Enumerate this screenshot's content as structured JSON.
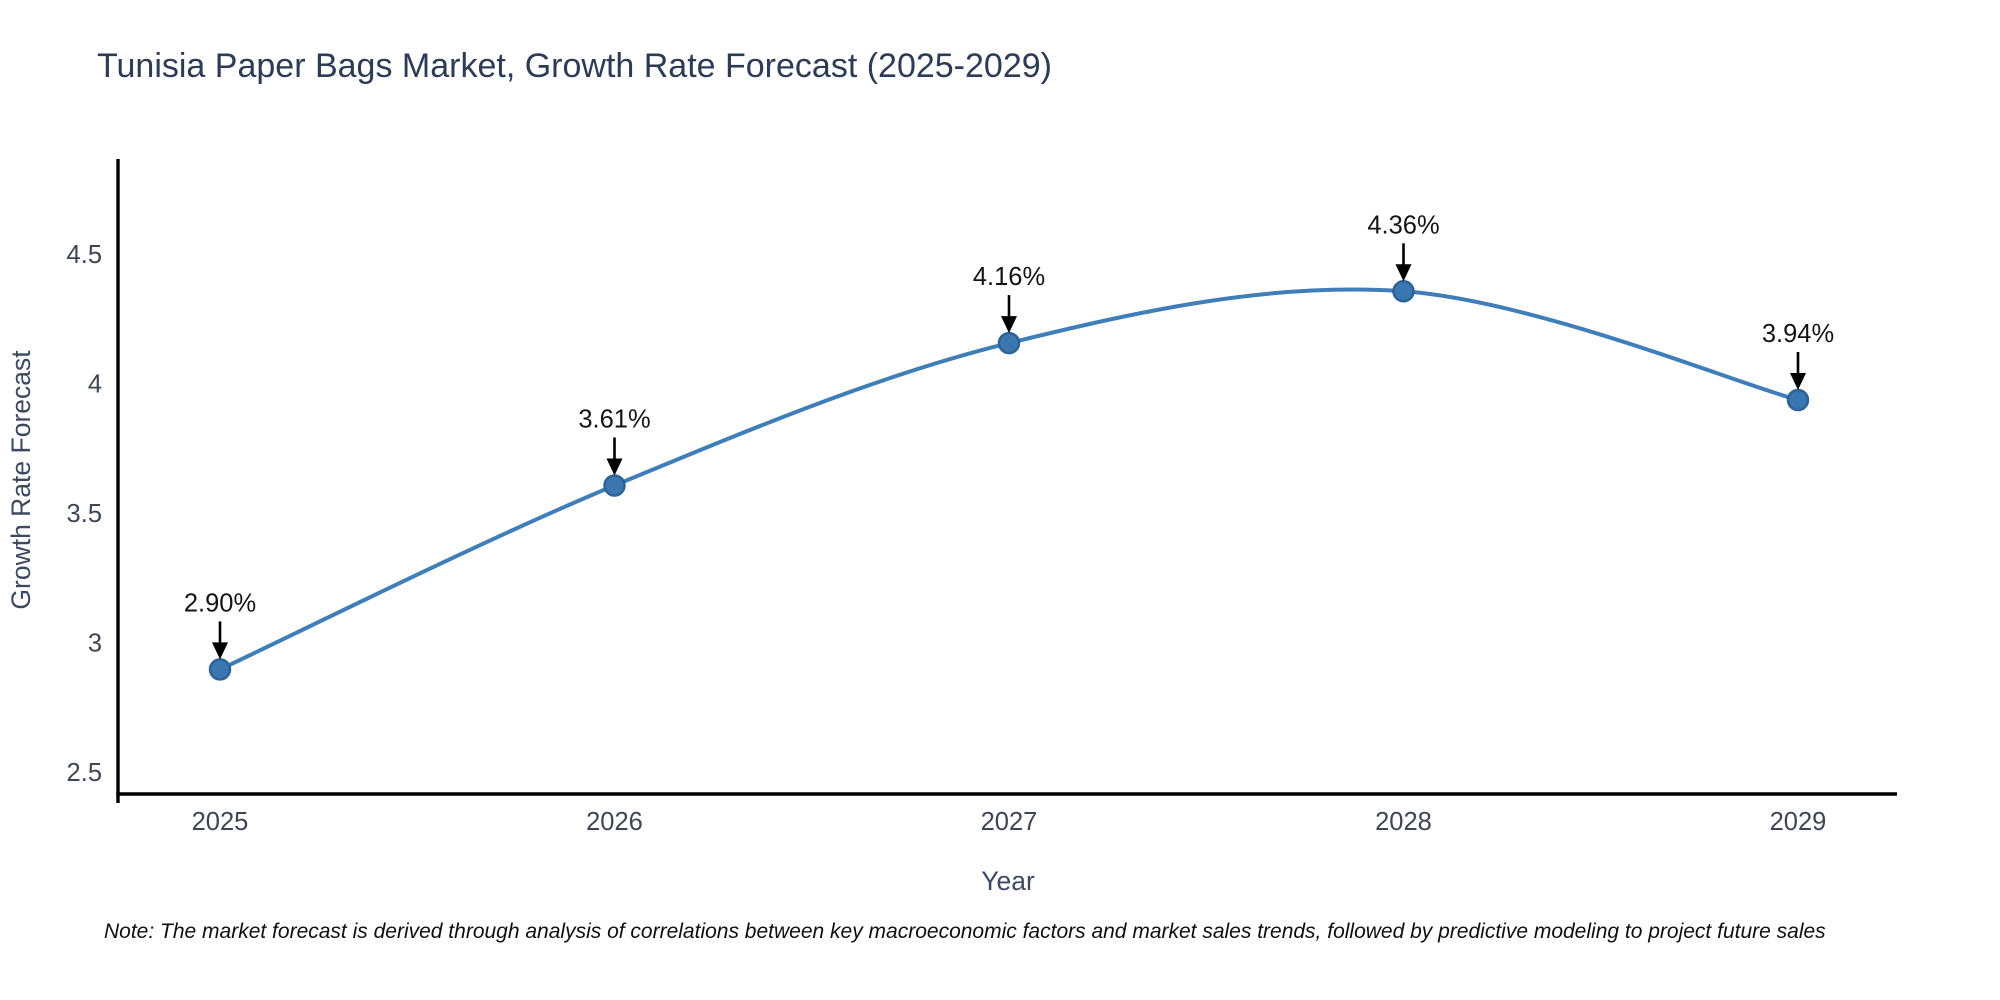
{
  "note": "Note: The market forecast is derived through analysis of correlations between key macroeconomic factors and market sales trends, followed by predictive modeling to project future sales",
  "chart_data": {
    "type": "line",
    "title": "Tunisia Paper Bags Market, Growth Rate Forecast (2025-2029)",
    "xlabel": "Year",
    "ylabel": "Growth Rate Forecast",
    "categories": [
      2025,
      2026,
      2027,
      2028,
      2029
    ],
    "values": [
      2.9,
      3.61,
      4.16,
      4.36,
      3.94
    ],
    "point_labels": [
      "2.90%",
      "3.61%",
      "4.16%",
      "4.36%",
      "3.94%"
    ],
    "xticklabels": [
      "2025",
      "2026",
      "2027",
      "2028",
      "2029"
    ],
    "yticks": [
      2.5,
      3,
      3.5,
      4,
      4.5
    ],
    "yticklabels": [
      "2.5",
      "3",
      "3.5",
      "4",
      "4.5"
    ],
    "ylim": [
      2.42,
      4.87
    ],
    "grid": false,
    "legend": "none",
    "annotation_style": "down-arrow",
    "colors": {
      "line": "#3f7eb8",
      "marker": "#3a76b0",
      "marker_edge": "#2e6397",
      "arrow": "#000000",
      "title_text": "#2d3b55",
      "tick_text": "#3e4553",
      "axis_label_text": "#3d4960",
      "axis_line": "#000000"
    }
  }
}
